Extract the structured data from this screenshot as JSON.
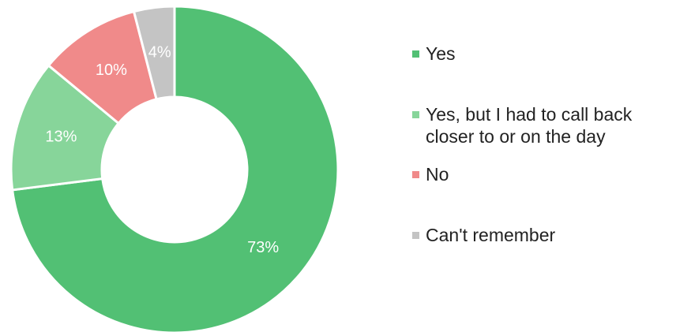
{
  "chart_data": {
    "type": "pie",
    "variant": "donut",
    "categories": [
      "Yes",
      "Yes, but I had to call back\ncloser to or on the day",
      "No",
      "Can't remember"
    ],
    "values": [
      73,
      13,
      10,
      4
    ],
    "data_labels": [
      "73%",
      "13%",
      "10%",
      "4%"
    ],
    "colors": [
      "#52c074",
      "#87d59a",
      "#f08a8a",
      "#c4c4c4"
    ],
    "legend_position": "right"
  }
}
